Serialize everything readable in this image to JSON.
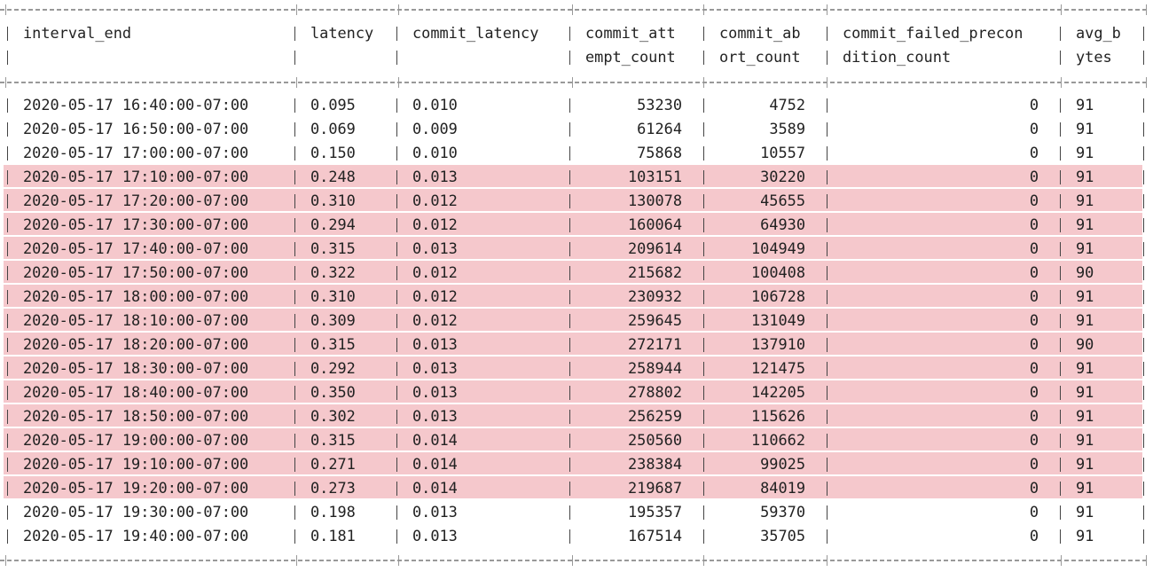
{
  "columns": [
    {
      "key": "interval_end",
      "line1": "interval_end",
      "line2": ""
    },
    {
      "key": "latency",
      "line1": "latency",
      "line2": ""
    },
    {
      "key": "commit_latency",
      "line1": "commit_latency",
      "line2": ""
    },
    {
      "key": "commit_attempt_count",
      "line1": "commit_att",
      "line2": "empt_count"
    },
    {
      "key": "commit_abort_count",
      "line1": "commit_ab",
      "line2": "ort_count"
    },
    {
      "key": "commit_failed_precondition_count",
      "line1": "commit_failed_precon",
      "line2": "dition_count"
    },
    {
      "key": "avg_bytes",
      "line1": "avg_b",
      "line2": "ytes"
    }
  ],
  "highlight_color": "#f5c8cc",
  "rows": [
    {
      "interval_end": "2020-05-17 16:40:00-07:00",
      "latency": "0.095",
      "commit_latency": "0.010",
      "commit_attempt_count": "53230",
      "commit_abort_count": "4752",
      "commit_failed_precondition_count": "0",
      "avg_bytes": "91",
      "highlighted": false
    },
    {
      "interval_end": "2020-05-17 16:50:00-07:00",
      "latency": "0.069",
      "commit_latency": "0.009",
      "commit_attempt_count": "61264",
      "commit_abort_count": "3589",
      "commit_failed_precondition_count": "0",
      "avg_bytes": "91",
      "highlighted": false
    },
    {
      "interval_end": "2020-05-17 17:00:00-07:00",
      "latency": "0.150",
      "commit_latency": "0.010",
      "commit_attempt_count": "75868",
      "commit_abort_count": "10557",
      "commit_failed_precondition_count": "0",
      "avg_bytes": "91",
      "highlighted": false
    },
    {
      "interval_end": "2020-05-17 17:10:00-07:00",
      "latency": "0.248",
      "commit_latency": "0.013",
      "commit_attempt_count": "103151",
      "commit_abort_count": "30220",
      "commit_failed_precondition_count": "0",
      "avg_bytes": "91",
      "highlighted": true
    },
    {
      "interval_end": "2020-05-17 17:20:00-07:00",
      "latency": "0.310",
      "commit_latency": "0.012",
      "commit_attempt_count": "130078",
      "commit_abort_count": "45655",
      "commit_failed_precondition_count": "0",
      "avg_bytes": "91",
      "highlighted": true
    },
    {
      "interval_end": "2020-05-17 17:30:00-07:00",
      "latency": "0.294",
      "commit_latency": "0.012",
      "commit_attempt_count": "160064",
      "commit_abort_count": "64930",
      "commit_failed_precondition_count": "0",
      "avg_bytes": "91",
      "highlighted": true
    },
    {
      "interval_end": "2020-05-17 17:40:00-07:00",
      "latency": "0.315",
      "commit_latency": "0.013",
      "commit_attempt_count": "209614",
      "commit_abort_count": "104949",
      "commit_failed_precondition_count": "0",
      "avg_bytes": "91",
      "highlighted": true
    },
    {
      "interval_end": "2020-05-17 17:50:00-07:00",
      "latency": "0.322",
      "commit_latency": "0.012",
      "commit_attempt_count": "215682",
      "commit_abort_count": "100408",
      "commit_failed_precondition_count": "0",
      "avg_bytes": "90",
      "highlighted": true
    },
    {
      "interval_end": "2020-05-17 18:00:00-07:00",
      "latency": "0.310",
      "commit_latency": "0.012",
      "commit_attempt_count": "230932",
      "commit_abort_count": "106728",
      "commit_failed_precondition_count": "0",
      "avg_bytes": "91",
      "highlighted": true
    },
    {
      "interval_end": "2020-05-17 18:10:00-07:00",
      "latency": "0.309",
      "commit_latency": "0.012",
      "commit_attempt_count": "259645",
      "commit_abort_count": "131049",
      "commit_failed_precondition_count": "0",
      "avg_bytes": "91",
      "highlighted": true
    },
    {
      "interval_end": "2020-05-17 18:20:00-07:00",
      "latency": "0.315",
      "commit_latency": "0.013",
      "commit_attempt_count": "272171",
      "commit_abort_count": "137910",
      "commit_failed_precondition_count": "0",
      "avg_bytes": "90",
      "highlighted": true
    },
    {
      "interval_end": "2020-05-17 18:30:00-07:00",
      "latency": "0.292",
      "commit_latency": "0.013",
      "commit_attempt_count": "258944",
      "commit_abort_count": "121475",
      "commit_failed_precondition_count": "0",
      "avg_bytes": "91",
      "highlighted": true
    },
    {
      "interval_end": "2020-05-17 18:40:00-07:00",
      "latency": "0.350",
      "commit_latency": "0.013",
      "commit_attempt_count": "278802",
      "commit_abort_count": "142205",
      "commit_failed_precondition_count": "0",
      "avg_bytes": "91",
      "highlighted": true
    },
    {
      "interval_end": "2020-05-17 18:50:00-07:00",
      "latency": "0.302",
      "commit_latency": "0.013",
      "commit_attempt_count": "256259",
      "commit_abort_count": "115626",
      "commit_failed_precondition_count": "0",
      "avg_bytes": "91",
      "highlighted": true
    },
    {
      "interval_end": "2020-05-17 19:00:00-07:00",
      "latency": "0.315",
      "commit_latency": "0.014",
      "commit_attempt_count": "250560",
      "commit_abort_count": "110662",
      "commit_failed_precondition_count": "0",
      "avg_bytes": "91",
      "highlighted": true
    },
    {
      "interval_end": "2020-05-17 19:10:00-07:00",
      "latency": "0.271",
      "commit_latency": "0.014",
      "commit_attempt_count": "238384",
      "commit_abort_count": "99025",
      "commit_failed_precondition_count": "0",
      "avg_bytes": "91",
      "highlighted": true
    },
    {
      "interval_end": "2020-05-17 19:20:00-07:00",
      "latency": "0.273",
      "commit_latency": "0.014",
      "commit_attempt_count": "219687",
      "commit_abort_count": "84019",
      "commit_failed_precondition_count": "0",
      "avg_bytes": "91",
      "highlighted": true
    },
    {
      "interval_end": "2020-05-17 19:30:00-07:00",
      "latency": "0.198",
      "commit_latency": "0.013",
      "commit_attempt_count": "195357",
      "commit_abort_count": "59370",
      "commit_failed_precondition_count": "0",
      "avg_bytes": "91",
      "highlighted": false
    },
    {
      "interval_end": "2020-05-17 19:40:00-07:00",
      "latency": "0.181",
      "commit_latency": "0.013",
      "commit_attempt_count": "167514",
      "commit_abort_count": "35705",
      "commit_failed_precondition_count": "0",
      "avg_bytes": "91",
      "highlighted": false
    }
  ]
}
